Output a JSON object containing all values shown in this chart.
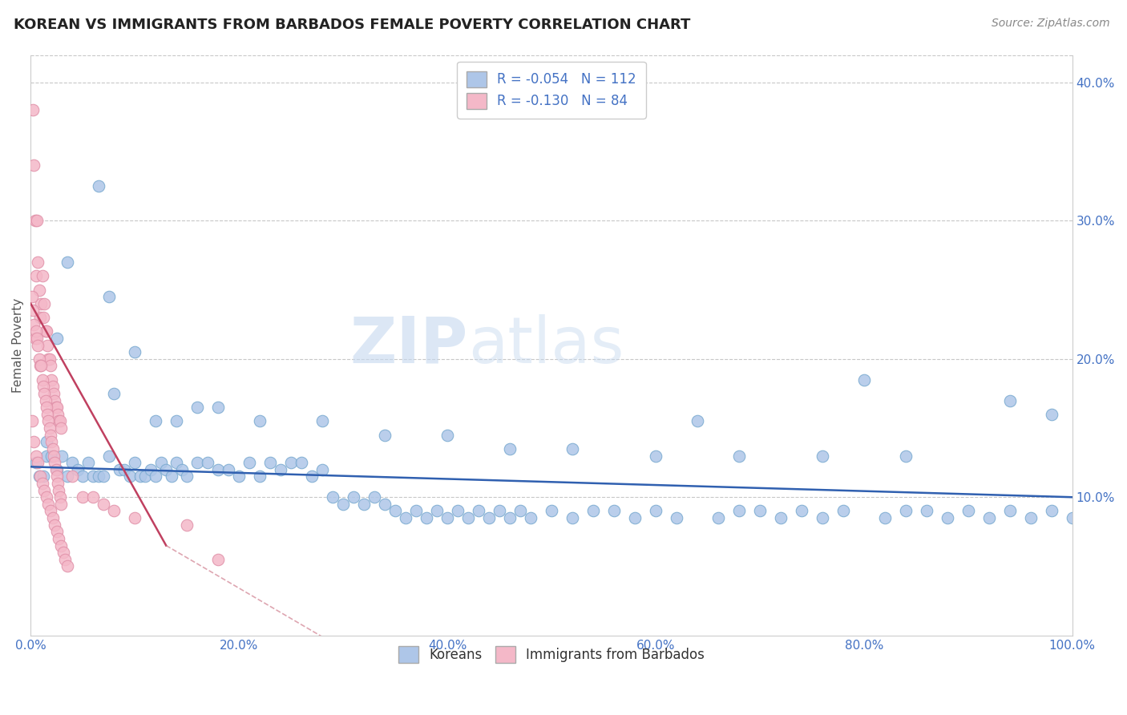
{
  "title": "KOREAN VS IMMIGRANTS FROM BARBADOS FEMALE POVERTY CORRELATION CHART",
  "source_text": "Source: ZipAtlas.com",
  "ylabel": "Female Poverty",
  "xlim": [
    0,
    1.0
  ],
  "ylim": [
    0,
    0.42
  ],
  "xtick_labels": [
    "0.0%",
    "20.0%",
    "40.0%",
    "60.0%",
    "80.0%",
    "100.0%"
  ],
  "xtick_vals": [
    0.0,
    0.2,
    0.4,
    0.6,
    0.8,
    1.0
  ],
  "ytick_labels": [
    "10.0%",
    "20.0%",
    "30.0%",
    "40.0%"
  ],
  "ytick_vals": [
    0.1,
    0.2,
    0.3,
    0.4
  ],
  "legend_entries": [
    {
      "label": "Koreans",
      "color": "#aec6e8",
      "edge_color": "#7aaad0",
      "R": "-0.054",
      "N": "112"
    },
    {
      "label": "Immigrants from Barbados",
      "color": "#f4b8c8",
      "edge_color": "#e090a8",
      "R": "-0.130",
      "N": "84"
    }
  ],
  "watermark_text": "ZIPatlas",
  "blue_line": [
    0.0,
    0.122,
    1.0,
    0.1
  ],
  "pink_line_solid": [
    0.0,
    0.24,
    0.13,
    0.065
  ],
  "pink_line_dashed": [
    0.13,
    0.065,
    0.55,
    -0.12
  ],
  "korean_x": [
    0.005,
    0.008,
    0.012,
    0.015,
    0.02,
    0.025,
    0.03,
    0.035,
    0.04,
    0.045,
    0.05,
    0.055,
    0.06,
    0.065,
    0.07,
    0.075,
    0.08,
    0.085,
    0.09,
    0.095,
    0.1,
    0.105,
    0.11,
    0.115,
    0.12,
    0.125,
    0.13,
    0.135,
    0.14,
    0.145,
    0.15,
    0.16,
    0.17,
    0.18,
    0.19,
    0.2,
    0.21,
    0.22,
    0.23,
    0.24,
    0.25,
    0.26,
    0.27,
    0.28,
    0.29,
    0.3,
    0.31,
    0.32,
    0.33,
    0.34,
    0.35,
    0.36,
    0.37,
    0.38,
    0.39,
    0.4,
    0.41,
    0.42,
    0.43,
    0.44,
    0.45,
    0.46,
    0.47,
    0.48,
    0.5,
    0.52,
    0.54,
    0.56,
    0.58,
    0.6,
    0.62,
    0.64,
    0.66,
    0.68,
    0.7,
    0.72,
    0.74,
    0.76,
    0.78,
    0.8,
    0.82,
    0.84,
    0.86,
    0.88,
    0.9,
    0.92,
    0.94,
    0.96,
    0.98,
    1.0,
    0.015,
    0.025,
    0.035,
    0.065,
    0.075,
    0.1,
    0.12,
    0.14,
    0.16,
    0.18,
    0.22,
    0.28,
    0.34,
    0.4,
    0.46,
    0.52,
    0.6,
    0.68,
    0.76,
    0.84,
    0.94,
    0.98
  ],
  "korean_y": [
    0.125,
    0.115,
    0.115,
    0.13,
    0.13,
    0.12,
    0.13,
    0.115,
    0.125,
    0.12,
    0.115,
    0.125,
    0.115,
    0.115,
    0.115,
    0.13,
    0.175,
    0.12,
    0.12,
    0.115,
    0.125,
    0.115,
    0.115,
    0.12,
    0.115,
    0.125,
    0.12,
    0.115,
    0.125,
    0.12,
    0.115,
    0.125,
    0.125,
    0.12,
    0.12,
    0.115,
    0.125,
    0.115,
    0.125,
    0.12,
    0.125,
    0.125,
    0.115,
    0.12,
    0.1,
    0.095,
    0.1,
    0.095,
    0.1,
    0.095,
    0.09,
    0.085,
    0.09,
    0.085,
    0.09,
    0.085,
    0.09,
    0.085,
    0.09,
    0.085,
    0.09,
    0.085,
    0.09,
    0.085,
    0.09,
    0.085,
    0.09,
    0.09,
    0.085,
    0.09,
    0.085,
    0.155,
    0.085,
    0.09,
    0.09,
    0.085,
    0.09,
    0.085,
    0.09,
    0.185,
    0.085,
    0.09,
    0.09,
    0.085,
    0.09,
    0.085,
    0.09,
    0.085,
    0.09,
    0.085,
    0.14,
    0.215,
    0.27,
    0.325,
    0.245,
    0.205,
    0.155,
    0.155,
    0.165,
    0.165,
    0.155,
    0.155,
    0.145,
    0.145,
    0.135,
    0.135,
    0.13,
    0.13,
    0.13,
    0.13,
    0.17,
    0.16
  ],
  "barbados_x": [
    0.002,
    0.003,
    0.004,
    0.005,
    0.006,
    0.007,
    0.008,
    0.009,
    0.01,
    0.011,
    0.012,
    0.013,
    0.014,
    0.015,
    0.016,
    0.017,
    0.018,
    0.019,
    0.02,
    0.021,
    0.022,
    0.023,
    0.024,
    0.025,
    0.026,
    0.027,
    0.028,
    0.029,
    0.001,
    0.002,
    0.003,
    0.004,
    0.005,
    0.006,
    0.007,
    0.008,
    0.009,
    0.01,
    0.011,
    0.012,
    0.013,
    0.014,
    0.015,
    0.016,
    0.017,
    0.018,
    0.019,
    0.02,
    0.021,
    0.022,
    0.023,
    0.024,
    0.025,
    0.026,
    0.027,
    0.028,
    0.029,
    0.001,
    0.003,
    0.005,
    0.007,
    0.009,
    0.011,
    0.013,
    0.015,
    0.017,
    0.019,
    0.021,
    0.023,
    0.025,
    0.027,
    0.029,
    0.031,
    0.033,
    0.035,
    0.04,
    0.05,
    0.06,
    0.07,
    0.08,
    0.1,
    0.15,
    0.18
  ],
  "barbados_y": [
    0.38,
    0.34,
    0.3,
    0.26,
    0.3,
    0.27,
    0.25,
    0.23,
    0.24,
    0.26,
    0.23,
    0.24,
    0.22,
    0.22,
    0.21,
    0.2,
    0.2,
    0.195,
    0.185,
    0.18,
    0.175,
    0.17,
    0.165,
    0.165,
    0.16,
    0.155,
    0.155,
    0.15,
    0.245,
    0.235,
    0.225,
    0.215,
    0.22,
    0.215,
    0.21,
    0.2,
    0.195,
    0.195,
    0.185,
    0.18,
    0.175,
    0.17,
    0.165,
    0.16,
    0.155,
    0.15,
    0.145,
    0.14,
    0.135,
    0.13,
    0.125,
    0.12,
    0.115,
    0.11,
    0.105,
    0.1,
    0.095,
    0.155,
    0.14,
    0.13,
    0.125,
    0.115,
    0.11,
    0.105,
    0.1,
    0.095,
    0.09,
    0.085,
    0.08,
    0.075,
    0.07,
    0.065,
    0.06,
    0.055,
    0.05,
    0.115,
    0.1,
    0.1,
    0.095,
    0.09,
    0.085,
    0.08,
    0.055
  ]
}
